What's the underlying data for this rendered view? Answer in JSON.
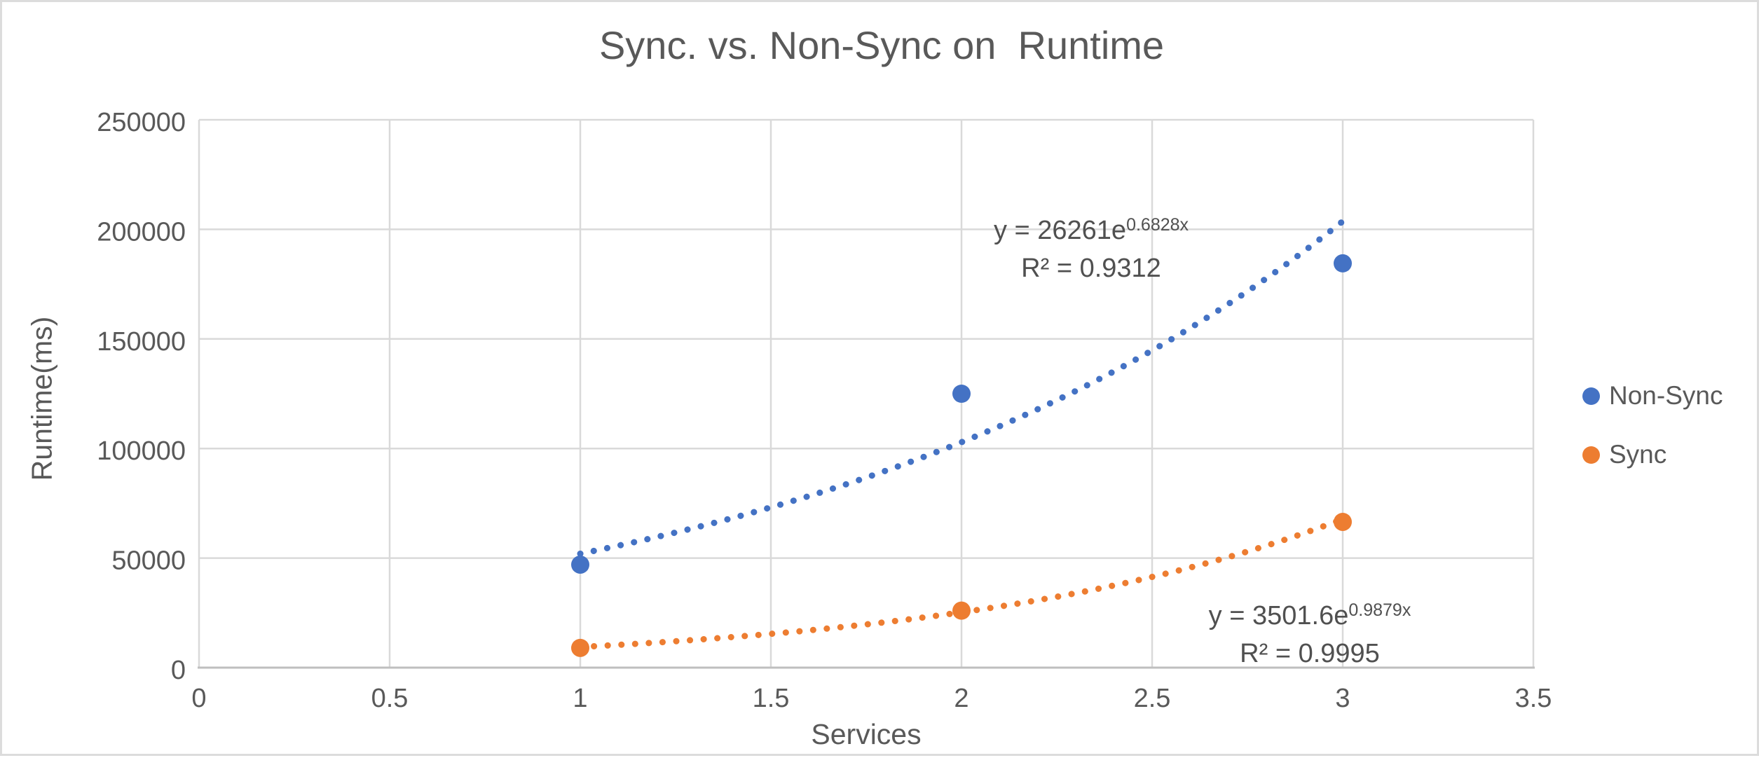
{
  "frame": {
    "background": "#ffffff",
    "border_color": "#dcdcdc"
  },
  "chart_data": {
    "type": "scatter",
    "title": "Sync. vs. Non-Sync on  Runtime",
    "xlabel": "Services",
    "ylabel": "Runtime(ms)",
    "xlim": [
      0,
      3.5
    ],
    "ylim": [
      0,
      250000
    ],
    "xticks": [
      0,
      0.5,
      1,
      1.5,
      2,
      2.5,
      3,
      3.5
    ],
    "yticks": [
      0,
      50000,
      100000,
      150000,
      200000,
      250000
    ],
    "grid": true,
    "legend_position": "right",
    "series": [
      {
        "name": "Non-Sync",
        "color": "#4472C4",
        "marker": "circle",
        "x": [
          1,
          2,
          3
        ],
        "y": [
          47000,
          125000,
          184500
        ],
        "trendline": {
          "type": "exponential",
          "a": 26261,
          "b": 0.6828,
          "x_start": 1,
          "x_end": 3,
          "style": "dotted",
          "equation_base": "y = 26261e",
          "equation_exponent": "0.6828x",
          "r_squared": "R² = 0.9312"
        }
      },
      {
        "name": "Sync",
        "color": "#ED7D31",
        "marker": "circle",
        "x": [
          1,
          2,
          3
        ],
        "y": [
          9000,
          26000,
          66500
        ],
        "trendline": {
          "type": "exponential",
          "a": 3501.6,
          "b": 0.9879,
          "x_start": 1,
          "x_end": 3,
          "style": "dotted",
          "equation_base": "y = 3501.6e",
          "equation_exponent": "0.9879x",
          "r_squared": "R² = 0.9995"
        }
      }
    ],
    "colors": {
      "gridline": "#D9D9D9",
      "axis_line": "#BFBFBF",
      "tick_text": "#595959",
      "title_text": "#595959",
      "equation_text": "#505050"
    }
  }
}
